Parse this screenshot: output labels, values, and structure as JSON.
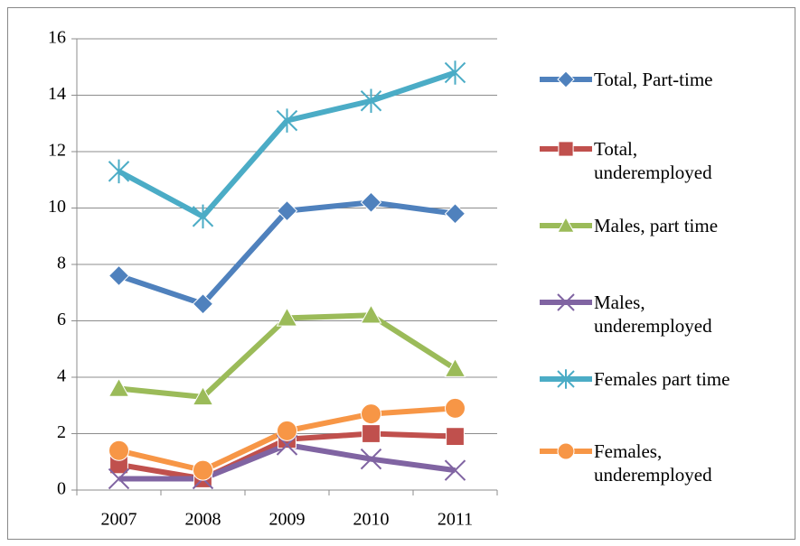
{
  "chart_data": {
    "type": "line",
    "categories": [
      "2007",
      "2008",
      "2009",
      "2010",
      "2011"
    ],
    "series": [
      {
        "name": "Total,  Part-time",
        "color": "#4f81bd",
        "marker": "diamond",
        "values": [
          7.6,
          6.6,
          9.9,
          10.2,
          9.8
        ]
      },
      {
        "name": "Total, underemployed",
        "color": "#c0504d",
        "marker": "square",
        "values": [
          0.9,
          0.4,
          1.8,
          2.0,
          1.9
        ]
      },
      {
        "name": "Males, part time",
        "color": "#9bbb59",
        "marker": "triangle",
        "values": [
          3.6,
          3.3,
          6.1,
          6.2,
          4.3
        ]
      },
      {
        "name": "Males, underemployed",
        "color": "#8064a2",
        "marker": "x",
        "values": [
          0.4,
          0.4,
          1.6,
          1.1,
          0.7
        ]
      },
      {
        "name": "Females part time",
        "color": "#4bacc6",
        "marker": "star",
        "values": [
          11.3,
          9.7,
          13.1,
          13.8,
          14.8
        ]
      },
      {
        "name": "Females, underemployed",
        "color": "#f79646",
        "marker": "circle",
        "values": [
          1.4,
          0.7,
          2.1,
          2.7,
          2.9
        ]
      }
    ],
    "ylim": [
      0,
      16
    ],
    "yticks": [
      0,
      2,
      4,
      6,
      8,
      10,
      12,
      14,
      16
    ],
    "grid": true,
    "legend": "right"
  }
}
